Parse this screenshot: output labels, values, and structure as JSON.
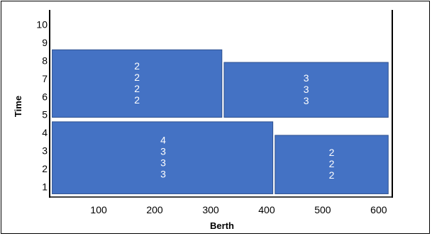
{
  "chart_data": {
    "type": "bar",
    "xlabel": "Berth",
    "ylabel": "Time",
    "x_ticks": [
      100,
      200,
      300,
      400,
      500,
      600
    ],
    "y_ticks": [
      1,
      2,
      3,
      4,
      5,
      6,
      7,
      8,
      9,
      10
    ],
    "xlim": [
      15,
      623
    ],
    "ylim": [
      0.5,
      10.5
    ],
    "grid": false,
    "colors": {
      "box_fill": "#4472C4",
      "box_stroke": "#2F528F",
      "axis": "#000000",
      "label": "#ffffff"
    },
    "boxes": [
      {
        "x0": 17,
        "x1": 320,
        "y0": 4.85,
        "y1": 8.6,
        "labels": [
          "2",
          "2",
          "2",
          "2"
        ]
      },
      {
        "x0": 324,
        "x1": 617,
        "y0": 4.85,
        "y1": 7.9,
        "labels": [
          "3",
          "3",
          "3"
        ]
      },
      {
        "x0": 17,
        "x1": 411,
        "y0": 0.6,
        "y1": 4.6,
        "labels": [
          "4",
          "3",
          "3",
          "3"
        ]
      },
      {
        "x0": 415,
        "x1": 617,
        "y0": 0.6,
        "y1": 3.85,
        "labels": [
          "2",
          "2",
          "2"
        ]
      }
    ]
  }
}
